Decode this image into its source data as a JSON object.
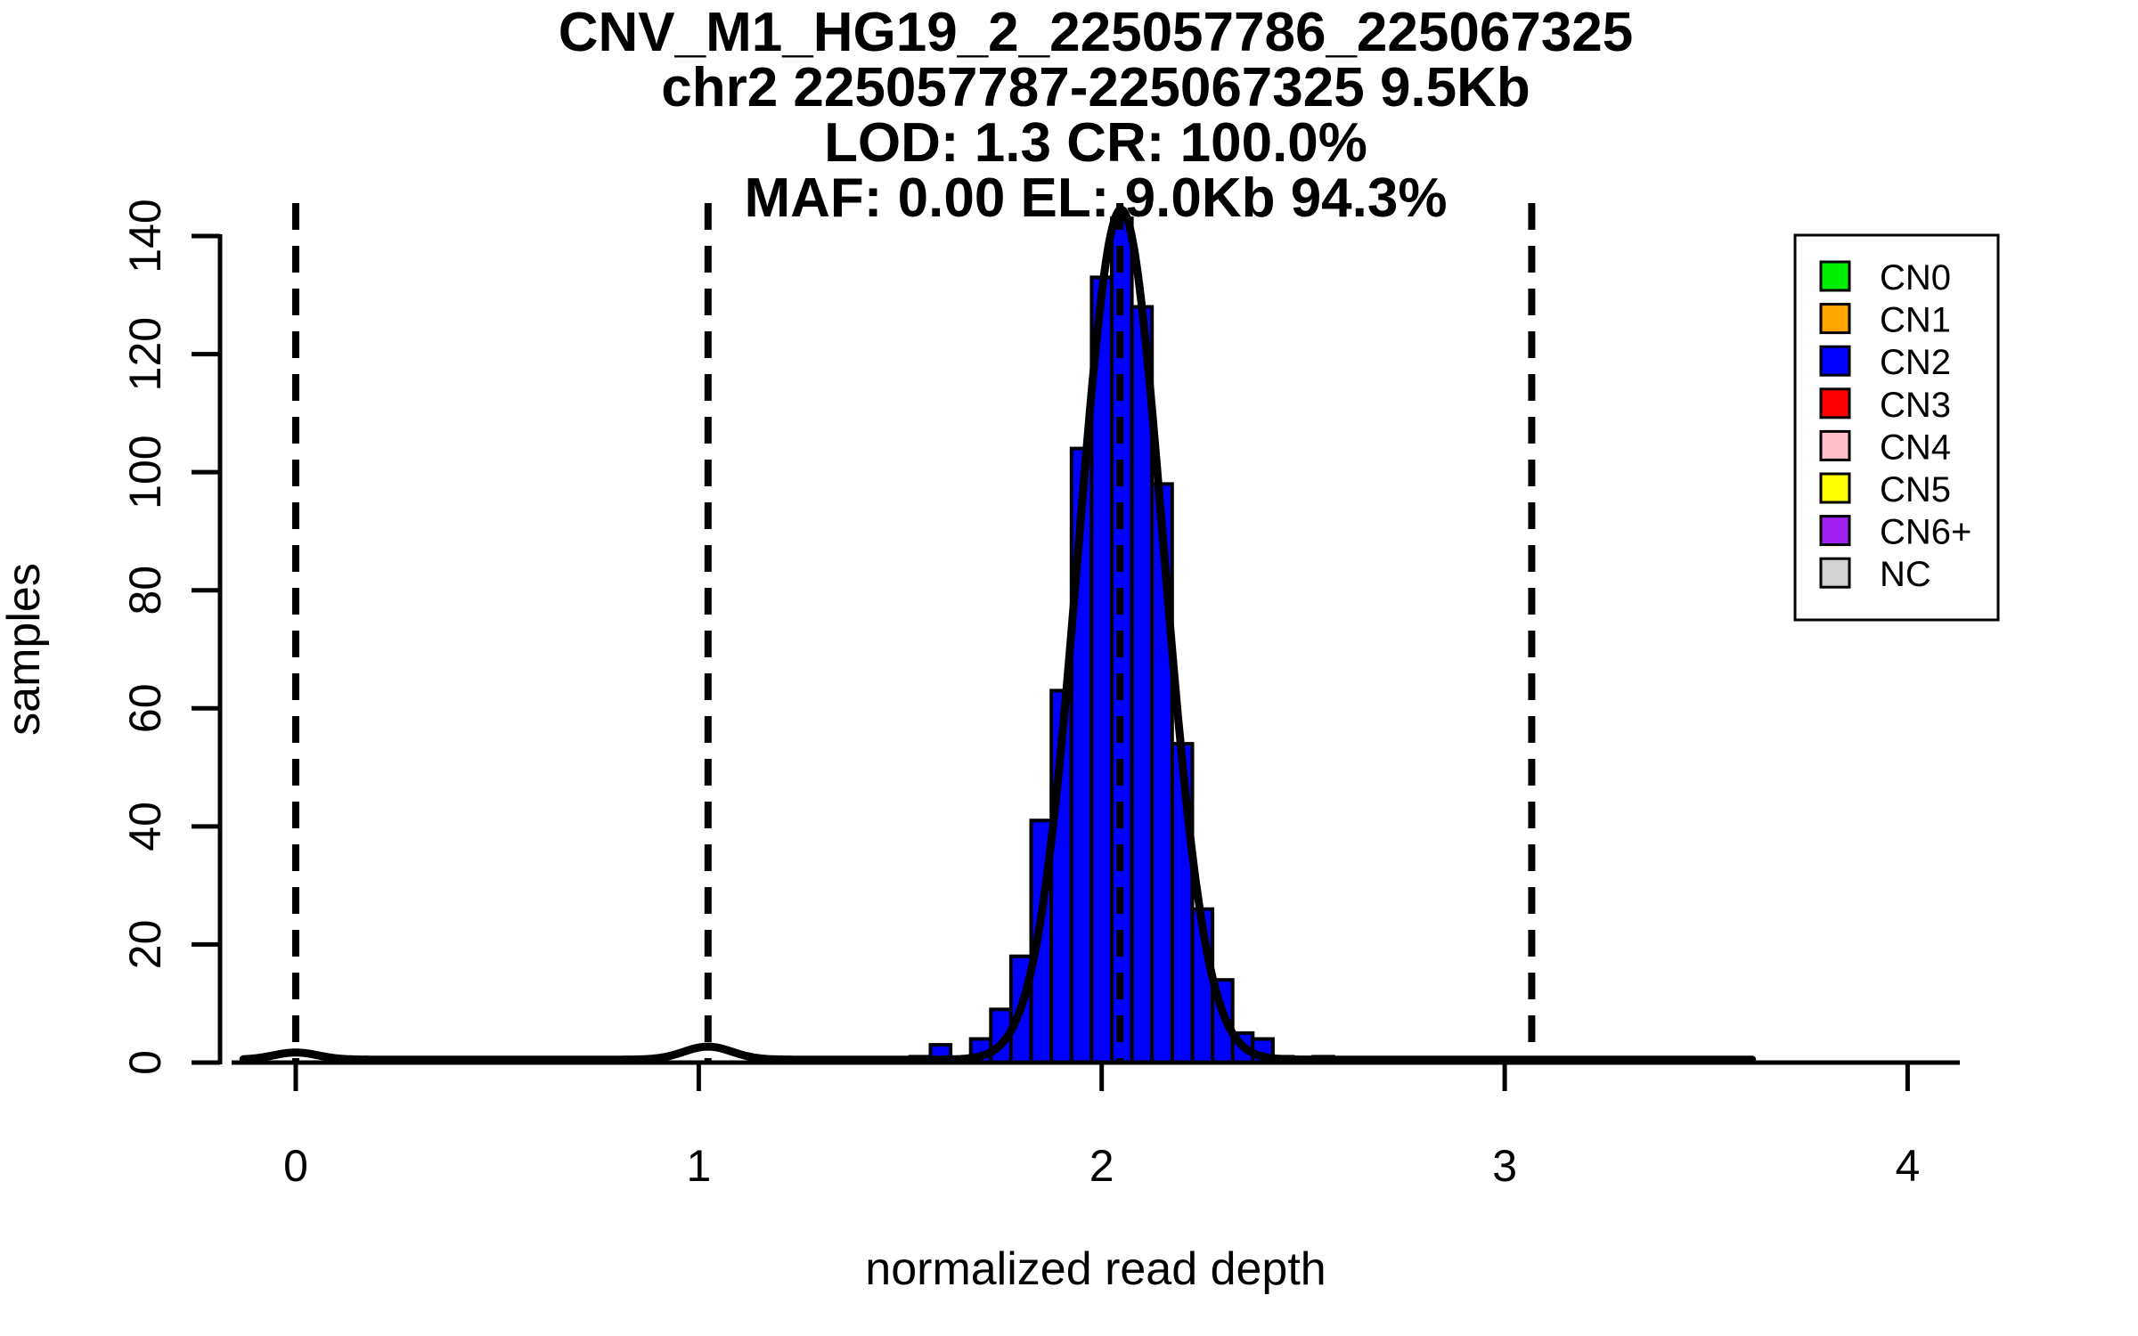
{
  "title": {
    "line1": "CNV_M1_HG19_2_225057786_225067325",
    "line2": "chr2 225057787-225067325 9.5Kb",
    "line3": "LOD: 1.3 CR: 100.0%",
    "line4": "MAF: 0.00 EL: 9.0Kb 94.3%"
  },
  "axes": {
    "x_label": "normalized read depth",
    "y_label": "samples"
  },
  "legend": {
    "items": [
      {
        "label": "CN0",
        "color": "#00EE00"
      },
      {
        "label": "CN1",
        "color": "#FFA500"
      },
      {
        "label": "CN2",
        "color": "#0000FF"
      },
      {
        "label": "CN3",
        "color": "#FF0000"
      },
      {
        "label": "CN4",
        "color": "#FFC0CB"
      },
      {
        "label": "CN5",
        "color": "#FFFF00"
      },
      {
        "label": "CN6+",
        "color": "#A020F0"
      },
      {
        "label": "NC",
        "color": "#D3D3D3"
      }
    ]
  },
  "chart_data": {
    "type": "bar",
    "subtype": "histogram-with-density-curve",
    "title": "CNV_M1_HG19_2_225057786_225067325",
    "subtitle_lines": [
      "chr2 225057787-225067325 9.5Kb",
      "LOD: 1.3 CR: 100.0%",
      "MAF: 0.00 EL: 9.0Kb 94.3%"
    ],
    "xlabel": "normalized read depth",
    "ylabel": "samples",
    "xlim": [
      -0.16,
      4.16
    ],
    "ylim": [
      0,
      145.6
    ],
    "x_ticks": [
      0,
      1,
      2,
      3,
      4
    ],
    "y_ticks": [
      0,
      20,
      40,
      60,
      80,
      100,
      120,
      140
    ],
    "grid": "off",
    "legend_position": "top-right",
    "bar_color": "#0000FF",
    "bar_border_color": "#000000",
    "histogram": {
      "bin_start": 1.525,
      "bin_width": 0.05,
      "bin_left_edges": [
        1.525,
        1.575,
        1.625,
        1.675,
        1.725,
        1.775,
        1.825,
        1.875,
        1.925,
        1.975,
        2.025,
        2.075,
        2.125,
        2.175,
        2.225,
        2.275,
        2.325,
        2.375,
        2.425,
        2.475,
        2.525
      ],
      "counts": [
        1,
        3,
        0,
        4,
        9,
        18,
        41,
        63,
        104,
        133,
        143,
        128,
        98,
        54,
        26,
        14,
        5,
        4,
        1,
        0,
        1
      ],
      "peak_bin": [
        2.025,
        2.075
      ],
      "peak_count": 143
    },
    "dashed_vlines_x": [
      0.0,
      1.023,
      2.045,
      3.067
    ],
    "density_curve": {
      "color": "#000000",
      "domain": [
        -0.13,
        3.617
      ],
      "baseline": 0.5,
      "clip_max": 145.6,
      "components": [
        {
          "mu": 0.0,
          "sigma": 0.055,
          "amp": 1.2
        },
        {
          "mu": 1.023,
          "sigma": 0.06,
          "amp": 2.2
        },
        {
          "mu": 2.048,
          "sigma": 0.105,
          "amp": 144
        }
      ]
    }
  }
}
